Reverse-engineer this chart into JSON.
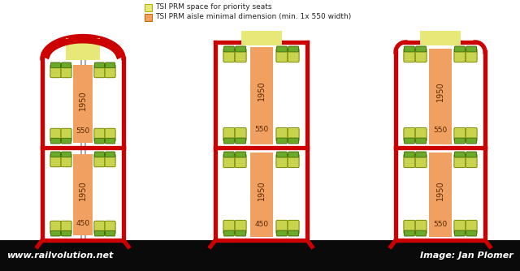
{
  "bg_color": "#ffffff",
  "black_bar_color": "#0a0a0a",
  "red_color": "#cc0000",
  "seat_outer_color": "#c8d44e",
  "seat_inner_color": "#6aaa2a",
  "aisle_color": "#f0a060",
  "priority_color": "#e8e878",
  "legend_text1": "TSI PRM space for priority seats",
  "legend_text2": "TSI PRM aisle minimal dimension (min. 1x 550 width)",
  "footer_left": "www.railvolution.net",
  "footer_right": "Image: Jan Plomer"
}
